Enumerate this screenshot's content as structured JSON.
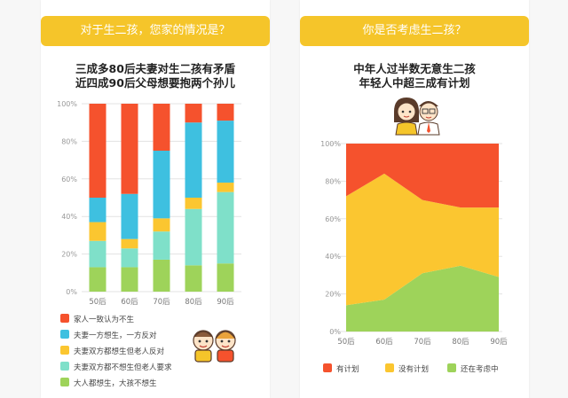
{
  "left_panel": {
    "banner": "对于生二孩，您家的情况是？",
    "heading_lines": [
      "三成多80后夫妻对生二孩有矛盾",
      "近四成90后父母想要抱两个孙儿"
    ]
  },
  "right_panel": {
    "banner": "你是否考虑生二孩？",
    "heading_lines": [
      "中年人过半数无意生二孩",
      "年轻人中超三成有计划"
    ]
  },
  "chart_data": [
    {
      "type": "bar",
      "stacked": true,
      "categories": [
        "50后",
        "60后",
        "70后",
        "80后",
        "90后"
      ],
      "y_tick_labels": [
        "0%",
        "20%",
        "40%",
        "60%",
        "80%",
        "100%"
      ],
      "ylim": [
        0,
        100
      ],
      "legend_position": "bottom",
      "series": [
        {
          "name": "大人都想生，大孩不想生",
          "color": "#9ed35a",
          "values": [
            13,
            13,
            17,
            14,
            15
          ]
        },
        {
          "name": "夫妻双方都不想生但老人要求",
          "color": "#7fe0c9",
          "values": [
            14,
            10,
            15,
            30,
            38
          ]
        },
        {
          "name": "夫妻双方都想生但老人反对",
          "color": "#fbc630",
          "values": [
            10,
            5,
            7,
            6,
            5
          ]
        },
        {
          "name": "夫妻一方想生，一方反对",
          "color": "#3ec0e0",
          "values": [
            13,
            24,
            36,
            40,
            33
          ]
        },
        {
          "name": "家人一致认为不生",
          "color": "#f5522d",
          "values": [
            50,
            48,
            25,
            10,
            9
          ]
        }
      ]
    },
    {
      "type": "area",
      "stacked": true,
      "categories": [
        "50后",
        "60后",
        "70后",
        "80后",
        "90后"
      ],
      "y_tick_labels": [
        "0%",
        "20%",
        "40%",
        "60%",
        "80%",
        "100%"
      ],
      "ylim": [
        0,
        100
      ],
      "legend_position": "bottom",
      "series": [
        {
          "name": "还在考虑中",
          "color": "#9ed35a",
          "values": [
            14,
            17,
            31,
            35,
            29
          ]
        },
        {
          "name": "没有计划",
          "color": "#fbc630",
          "values": [
            58,
            67,
            39,
            31,
            37
          ]
        },
        {
          "name": "有计划",
          "color": "#f5522d",
          "values": [
            28,
            16,
            30,
            34,
            34
          ]
        }
      ]
    }
  ]
}
